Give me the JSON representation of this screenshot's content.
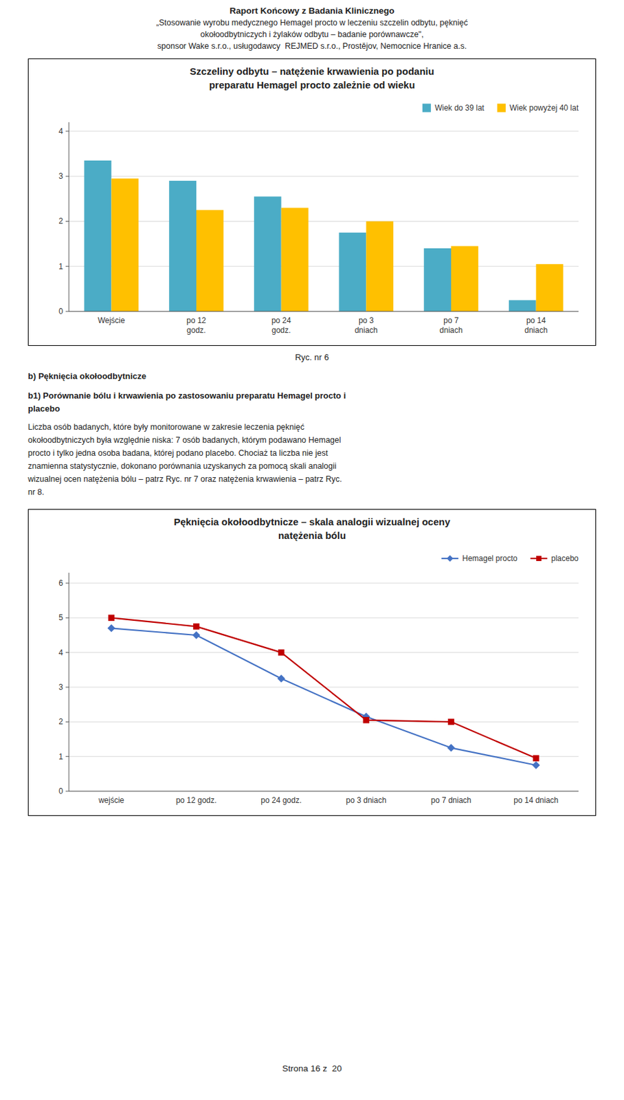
{
  "page": {
    "header": [
      "Raport Końcowy z Badania Klinicznego",
      "„Stosowanie wyrobu medycznego Hemagel procto w leczeniu szczelin odbytu, pęknięć",
      "okołoodbytniczych i żylaków odbytu – badanie porównawcze\",",
      "sponsor Wake s.r.o., usługodawcy  REJMED s.r.o., Prostějov, Nemocnice Hranice a.s."
    ],
    "caption": "Ryc. nr 6",
    "headings": [
      "b) Pęknięcia okołoodbytnicze",
      "b1) Porównanie bólu i krwawienia po zastosowaniu preparatu Hemagel procto i",
      "placebo"
    ],
    "body": [
      "Liczba osób badanych, które były monitorowane w zakresie leczenia pęknięć",
      "okołoodbytniczych była względnie niska: 7 osób badanych, którym podawano Hemagel",
      "procto i tylko jedna osoba badana, której podano placebo. Chociaż ta liczba nie jest",
      "znamienna statystycznie, dokonano porównania uzyskanych za pomocą skali analogii",
      "wizualnej ocen natężenia bólu – patrz Ryc. nr 7 oraz natężenia krwawienia – patrz Ryc.",
      "nr 8."
    ],
    "footer": "Strona 16 z  20"
  },
  "chart_data": [
    {
      "type": "bar",
      "title": [
        "Szczeliny odbytu – natężenie krwawienia po podaniu",
        "preparatu Hemagel procto zależnie od wieku"
      ],
      "categories": [
        "Wejście",
        "po 12\ngodz.",
        "po 24\ngodz.",
        "po 3\ndniach",
        "po 7\ndniach",
        "po 14\ndniach"
      ],
      "series": [
        {
          "name": "Wiek do 39 lat",
          "color": "#4bacc6",
          "values": [
            3.35,
            2.9,
            2.55,
            1.75,
            1.4,
            0.25
          ]
        },
        {
          "name": "Wiek powyżej 40 lat",
          "color": "#ffc000",
          "values": [
            2.95,
            2.25,
            2.3,
            2.0,
            1.45,
            1.05
          ]
        }
      ],
      "ylim": [
        0,
        4.2
      ],
      "yticks": [
        0,
        1,
        2,
        3,
        4
      ],
      "grid": true,
      "legend": "upper right"
    },
    {
      "type": "line",
      "title": [
        "Pęknięcia okołoodbytnicze – skala analogii wizualnej oceny",
        "natężenia bólu"
      ],
      "categories": [
        "wejście",
        "po 12 godz.",
        "po 24 godz.",
        "po 3 dniach",
        "po 7 dniach",
        "po 14 dniach"
      ],
      "series": [
        {
          "name": "Hemagel procto",
          "color": "#4472c4",
          "marker": "diamond",
          "values": [
            4.7,
            4.5,
            3.25,
            2.15,
            1.25,
            0.75
          ]
        },
        {
          "name": "placebo",
          "color": "#c00000",
          "marker": "square",
          "values": [
            5.0,
            4.75,
            4.0,
            2.05,
            2.0,
            0.95
          ]
        }
      ],
      "ylim": [
        0,
        6.3
      ],
      "yticks": [
        0,
        1,
        2,
        3,
        4,
        5,
        6
      ],
      "grid": true,
      "legend": "upper right"
    }
  ]
}
